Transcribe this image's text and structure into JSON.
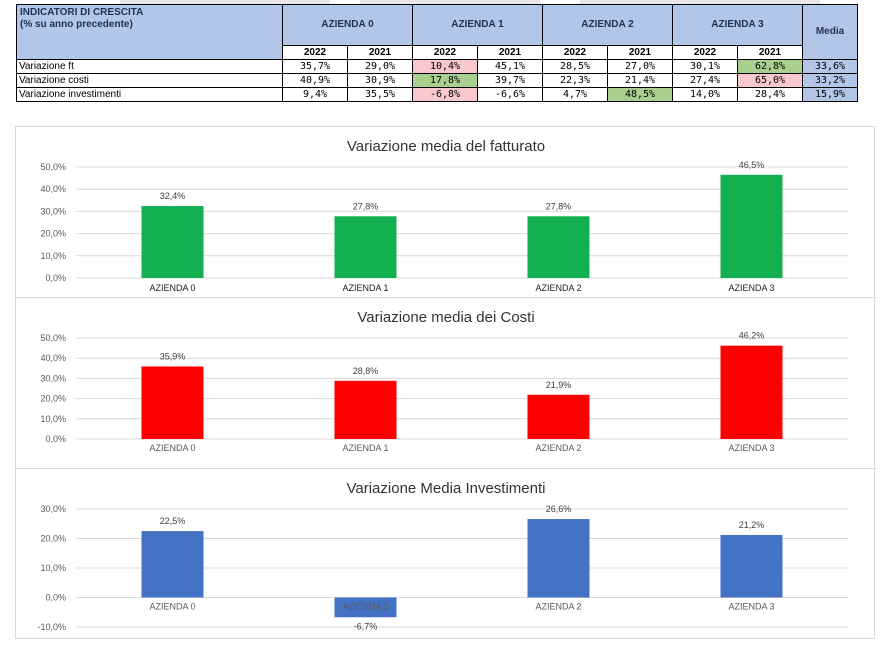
{
  "table": {
    "title_line1": "INDICATORI DI CRESCITA",
    "title_line2": "(% su anno precedente)",
    "companies": [
      "AZIENDA 0",
      "AZIENDA 1",
      "AZIENDA 2",
      "AZIENDA 3"
    ],
    "years": [
      "2022",
      "2021"
    ],
    "media_label": "Media",
    "rows": [
      {
        "label": "Variazione ft",
        "values": [
          "35,7%",
          "29,0%",
          "10,4%",
          "45,1%",
          "28,5%",
          "27,0%",
          "30,1%",
          "62,8%"
        ],
        "highlight": [
          "",
          "",
          "red",
          "",
          "",
          "",
          "",
          "green"
        ],
        "media": "33,6%"
      },
      {
        "label": "Variazione costi",
        "values": [
          "40,9%",
          "30,9%",
          "17,8%",
          "39,7%",
          "22,3%",
          "21,4%",
          "27,4%",
          "65,0%"
        ],
        "highlight": [
          "",
          "",
          "green",
          "",
          "",
          "",
          "",
          "red"
        ],
        "media": "33,2%"
      },
      {
        "label": "Variazione investimenti",
        "values": [
          "9,4%",
          "35,5%",
          "-6,8%",
          "-6,6%",
          "4,7%",
          "48,5%",
          "14,0%",
          "28,4%"
        ],
        "highlight": [
          "",
          "",
          "red",
          "",
          "",
          "green",
          "",
          ""
        ],
        "media": "15,9%"
      }
    ]
  },
  "chart_data": [
    {
      "type": "bar",
      "title": "Variazione media del fatturato",
      "categories": [
        "AZIENDA 0",
        "AZIENDA 1",
        "AZIENDA 2",
        "AZIENDA 3"
      ],
      "values": [
        32.4,
        27.8,
        27.8,
        46.5
      ],
      "data_labels": [
        "32,4%",
        "27,8%",
        "27,8%",
        "46,5%"
      ],
      "ylim": [
        0,
        50
      ],
      "yticks": [
        0,
        10,
        20,
        30,
        40,
        50
      ],
      "ytick_labels": [
        "0,0%",
        "10,0%",
        "20,0%",
        "30,0%",
        "40,0%",
        "50,0%"
      ],
      "color": "#12b050",
      "grid": true
    },
    {
      "type": "bar",
      "title": "Variazione media dei Costi",
      "categories": [
        "AZIENDA 0",
        "AZIENDA 1",
        "AZIENDA 2",
        "AZIENDA 3"
      ],
      "values": [
        35.9,
        28.8,
        21.9,
        46.2
      ],
      "data_labels": [
        "35,9%",
        "28,8%",
        "21,9%",
        "46,2%"
      ],
      "ylim": [
        0,
        50
      ],
      "yticks": [
        0,
        10,
        20,
        30,
        40,
        50
      ],
      "ytick_labels": [
        "0,0%",
        "10,0%",
        "20,0%",
        "30,0%",
        "40,0%",
        "50,0%"
      ],
      "color": "#ff0000",
      "grid": true
    },
    {
      "type": "bar",
      "title": "Variazione Media Investimenti",
      "categories": [
        "AZIENDA 0",
        "AZIENDA 1",
        "AZIENDA 2",
        "AZIENDA 3"
      ],
      "values": [
        22.5,
        -6.7,
        26.6,
        21.2
      ],
      "data_labels": [
        "22,5%",
        "-6,7%",
        "26,6%",
        "21,2%"
      ],
      "ylim": [
        -10,
        30
      ],
      "yticks": [
        -10,
        0,
        10,
        20,
        30
      ],
      "ytick_labels": [
        "-10,0%",
        "0,0%",
        "10,0%",
        "20,0%",
        "30,0%"
      ],
      "color": "#4472c4",
      "grid": true
    }
  ]
}
